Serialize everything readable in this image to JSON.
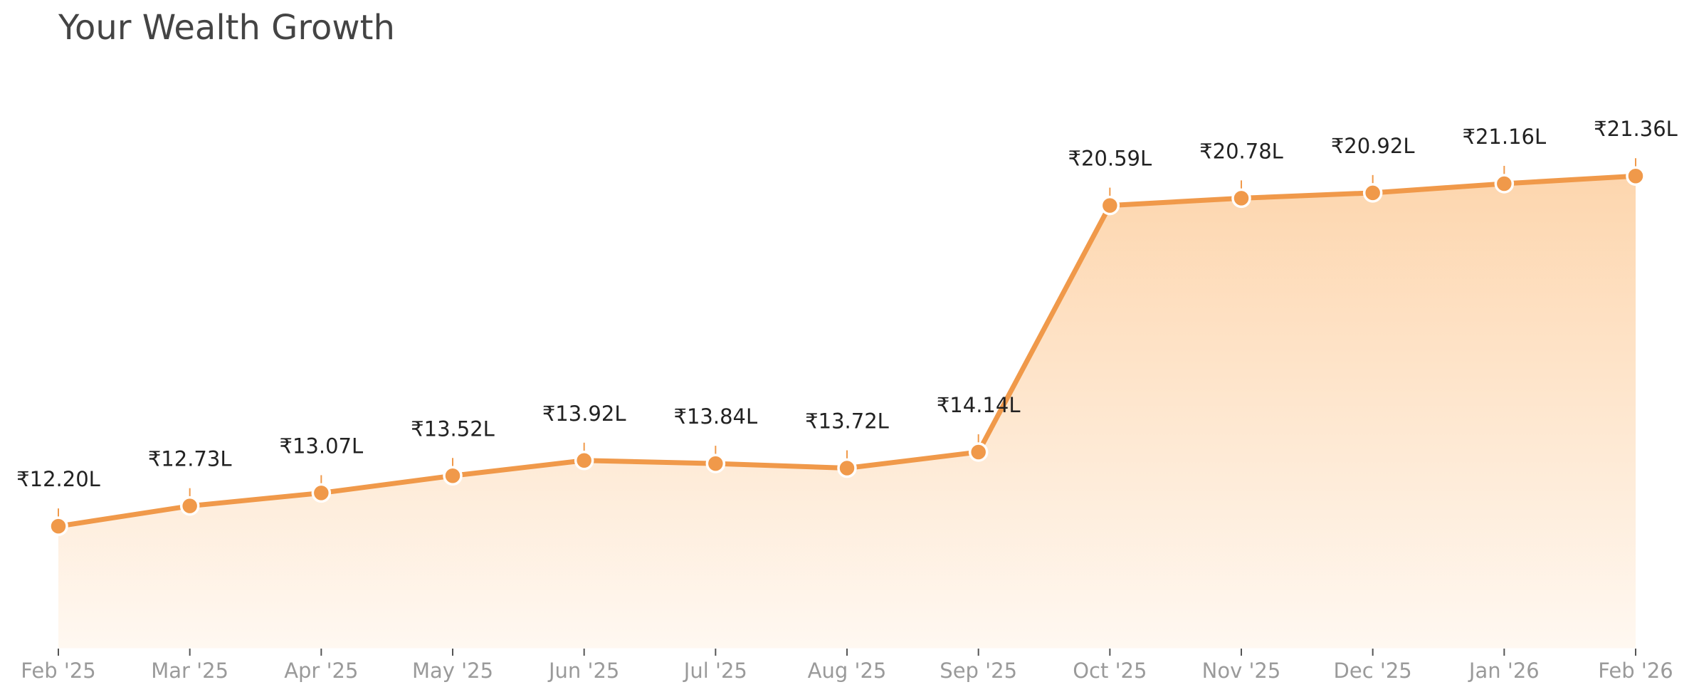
{
  "chart_data": {
    "type": "line",
    "title": "Your Wealth Growth",
    "categories": [
      "Feb '25",
      "Mar '25",
      "Apr '25",
      "May '25",
      "Jun '25",
      "Jul '25",
      "Aug '25",
      "Sep '25",
      "Oct '25",
      "Nov '25",
      "Dec '25",
      "Jan '26",
      "Feb '26"
    ],
    "values": [
      12.2,
      12.73,
      13.07,
      13.52,
      13.92,
      13.84,
      13.72,
      14.14,
      20.59,
      20.78,
      20.92,
      21.16,
      21.36
    ],
    "value_labels": [
      "₹12.20L",
      "₹12.73L",
      "₹13.07L",
      "₹13.52L",
      "₹13.92L",
      "₹13.84L",
      "₹13.72L",
      "₹14.14L",
      "₹20.59L",
      "₹20.78L",
      "₹20.92L",
      "₹21.16L",
      "₹21.36L"
    ],
    "color": "#f0994a",
    "ylim": [
      9,
      22.5
    ]
  }
}
